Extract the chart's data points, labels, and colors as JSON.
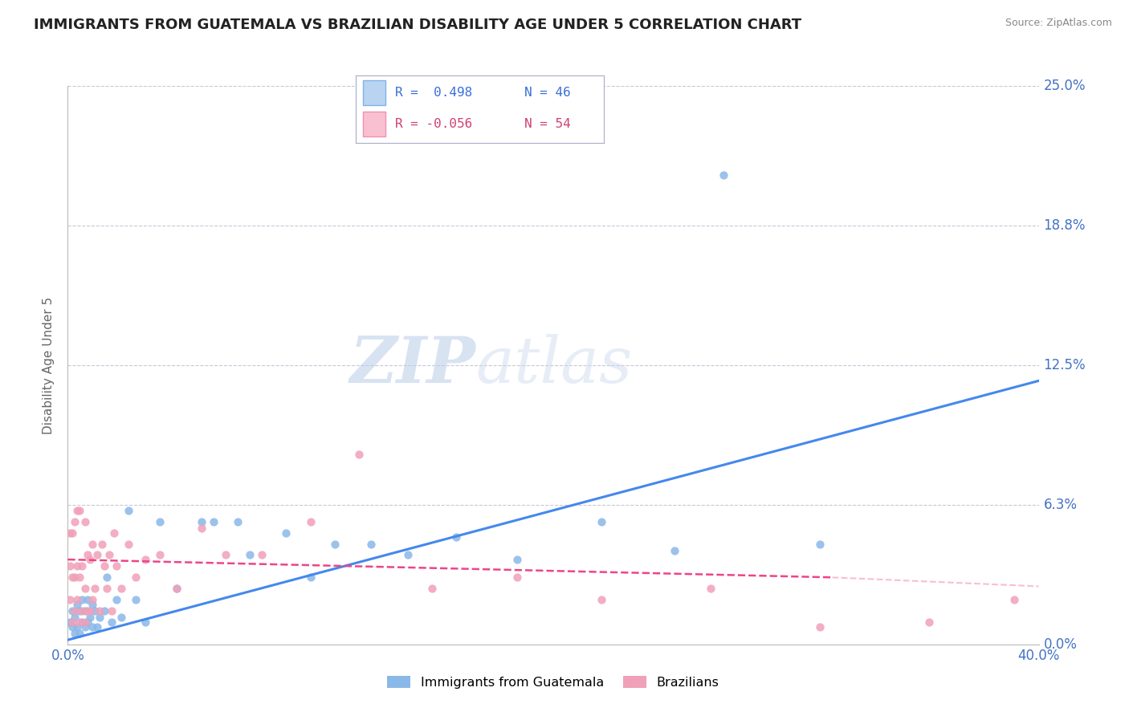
{
  "title": "IMMIGRANTS FROM GUATEMALA VS BRAZILIAN DISABILITY AGE UNDER 5 CORRELATION CHART",
  "source": "Source: ZipAtlas.com",
  "ylabel": "Disability Age Under 5",
  "xlim": [
    0.0,
    0.4
  ],
  "ylim": [
    0.0,
    0.25
  ],
  "xtick_labels": [
    "0.0%",
    "40.0%"
  ],
  "ytick_labels": [
    "0.0%",
    "6.3%",
    "12.5%",
    "18.8%",
    "25.0%"
  ],
  "ytick_values": [
    0.0,
    0.0625,
    0.125,
    0.1875,
    0.25
  ],
  "xtick_values": [
    0.0,
    0.4
  ],
  "grid_color": "#c8c8d8",
  "background_color": "#ffffff",
  "series1_color": "#8ab8e8",
  "series2_color": "#f0a0b8",
  "line1_color": "#4488ee",
  "line2_color": "#ee4488",
  "legend_r1": "R =  0.498",
  "legend_n1": "N = 46",
  "legend_r2": "R = -0.056",
  "legend_n2": "N = 54",
  "watermark_zip": "ZIP",
  "watermark_atlas": "atlas",
  "title_fontsize": 13,
  "axis_label_fontsize": 11,
  "tick_fontsize": 12,
  "series1_x": [
    0.001,
    0.002,
    0.002,
    0.003,
    0.003,
    0.004,
    0.004,
    0.005,
    0.005,
    0.006,
    0.006,
    0.007,
    0.007,
    0.008,
    0.008,
    0.009,
    0.01,
    0.01,
    0.011,
    0.012,
    0.013,
    0.015,
    0.016,
    0.018,
    0.02,
    0.022,
    0.025,
    0.028,
    0.032,
    0.038,
    0.045,
    0.055,
    0.06,
    0.07,
    0.075,
    0.09,
    0.1,
    0.11,
    0.125,
    0.14,
    0.16,
    0.185,
    0.22,
    0.25,
    0.27,
    0.31
  ],
  "series1_y": [
    0.01,
    0.008,
    0.015,
    0.005,
    0.012,
    0.008,
    0.018,
    0.005,
    0.015,
    0.01,
    0.02,
    0.008,
    0.015,
    0.01,
    0.02,
    0.012,
    0.008,
    0.018,
    0.015,
    0.008,
    0.012,
    0.015,
    0.03,
    0.01,
    0.02,
    0.012,
    0.06,
    0.02,
    0.01,
    0.055,
    0.025,
    0.055,
    0.055,
    0.055,
    0.04,
    0.05,
    0.03,
    0.045,
    0.045,
    0.04,
    0.048,
    0.038,
    0.055,
    0.042,
    0.21,
    0.045
  ],
  "series2_x": [
    0.001,
    0.001,
    0.001,
    0.002,
    0.002,
    0.002,
    0.003,
    0.003,
    0.003,
    0.004,
    0.004,
    0.004,
    0.005,
    0.005,
    0.005,
    0.006,
    0.006,
    0.007,
    0.007,
    0.007,
    0.008,
    0.008,
    0.009,
    0.009,
    0.01,
    0.01,
    0.011,
    0.012,
    0.013,
    0.014,
    0.015,
    0.016,
    0.017,
    0.018,
    0.019,
    0.02,
    0.022,
    0.025,
    0.028,
    0.032,
    0.038,
    0.045,
    0.055,
    0.065,
    0.08,
    0.1,
    0.12,
    0.15,
    0.185,
    0.22,
    0.265,
    0.31,
    0.355,
    0.39
  ],
  "series2_y": [
    0.02,
    0.035,
    0.05,
    0.01,
    0.03,
    0.05,
    0.015,
    0.03,
    0.055,
    0.02,
    0.035,
    0.06,
    0.01,
    0.03,
    0.06,
    0.015,
    0.035,
    0.01,
    0.025,
    0.055,
    0.015,
    0.04,
    0.015,
    0.038,
    0.02,
    0.045,
    0.025,
    0.04,
    0.015,
    0.045,
    0.035,
    0.025,
    0.04,
    0.015,
    0.05,
    0.035,
    0.025,
    0.045,
    0.03,
    0.038,
    0.04,
    0.025,
    0.052,
    0.04,
    0.04,
    0.055,
    0.085,
    0.025,
    0.03,
    0.02,
    0.025,
    0.008,
    0.01,
    0.02
  ],
  "trend1_x": [
    0.0,
    0.4
  ],
  "trend1_y": [
    0.002,
    0.118
  ],
  "trend2_x": [
    0.0,
    0.315
  ],
  "trend2_y": [
    0.038,
    0.03
  ]
}
